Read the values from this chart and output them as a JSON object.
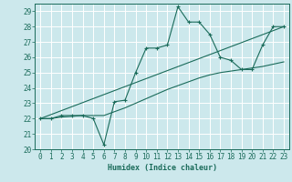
{
  "xlabel": "Humidex (Indice chaleur)",
  "bg_color": "#cce8ec",
  "grid_color": "#ffffff",
  "line_color": "#1a6b5a",
  "xlim": [
    -0.5,
    23.5
  ],
  "ylim": [
    20,
    29.5
  ],
  "yticks": [
    20,
    21,
    22,
    23,
    24,
    25,
    26,
    27,
    28,
    29
  ],
  "xticks": [
    0,
    1,
    2,
    3,
    4,
    5,
    6,
    7,
    8,
    9,
    10,
    11,
    12,
    13,
    14,
    15,
    16,
    17,
    18,
    19,
    20,
    21,
    22,
    23
  ],
  "curve1_x": [
    0,
    1,
    2,
    3,
    4,
    5,
    6,
    7,
    8,
    9,
    10,
    11,
    12,
    13,
    14,
    15,
    16,
    17,
    18,
    19,
    20,
    21,
    22,
    23
  ],
  "curve1_y": [
    22.0,
    22.0,
    22.2,
    22.2,
    22.2,
    22.0,
    20.3,
    23.1,
    23.2,
    25.0,
    26.6,
    26.6,
    26.8,
    29.3,
    28.3,
    28.3,
    27.5,
    26.0,
    25.8,
    25.2,
    25.2,
    26.8,
    28.0,
    28.0
  ],
  "curve2_x": [
    0,
    23
  ],
  "curve2_y": [
    22.0,
    28.0
  ],
  "curve3_x": [
    0,
    1,
    2,
    3,
    4,
    5,
    6,
    7,
    8,
    9,
    10,
    11,
    12,
    13,
    14,
    15,
    16,
    17,
    18,
    19,
    20,
    21,
    22,
    23
  ],
  "curve3_y": [
    22.0,
    22.0,
    22.1,
    22.15,
    22.2,
    22.2,
    22.2,
    22.45,
    22.7,
    23.0,
    23.3,
    23.6,
    23.9,
    24.15,
    24.4,
    24.65,
    24.85,
    25.0,
    25.1,
    25.2,
    25.3,
    25.4,
    25.55,
    25.7
  ]
}
